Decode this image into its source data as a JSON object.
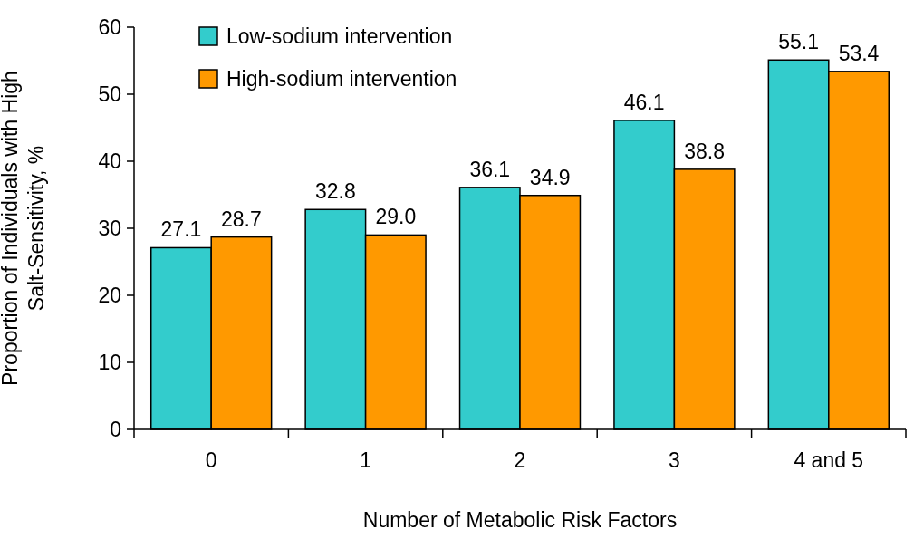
{
  "chart_data": {
    "type": "bar",
    "xlabel": "Number of Metabolic Risk Factors",
    "ylabel": "Proportion of Individuals with High Salt-Sensitivity, %",
    "categories": [
      "0",
      "1",
      "2",
      "3",
      "4 and 5"
    ],
    "series": [
      {
        "name": "Low-sodium intervention",
        "color": "#33cccc",
        "values": [
          27.1,
          32.8,
          36.1,
          46.1,
          55.1
        ],
        "value_labels": [
          "27.1",
          "32.8",
          "36.1",
          "46.1",
          "55.1"
        ]
      },
      {
        "name": "High-sodium intervention",
        "color": "#ff9900",
        "values": [
          28.7,
          29.0,
          34.9,
          38.8,
          53.4
        ],
        "value_labels": [
          "28.7",
          "29.0",
          "34.9",
          "38.8",
          "53.4"
        ]
      }
    ],
    "ylim": [
      0,
      60
    ],
    "yticks": [
      0,
      10,
      20,
      30,
      40,
      50,
      60
    ],
    "grid": false,
    "legend": "top left"
  }
}
